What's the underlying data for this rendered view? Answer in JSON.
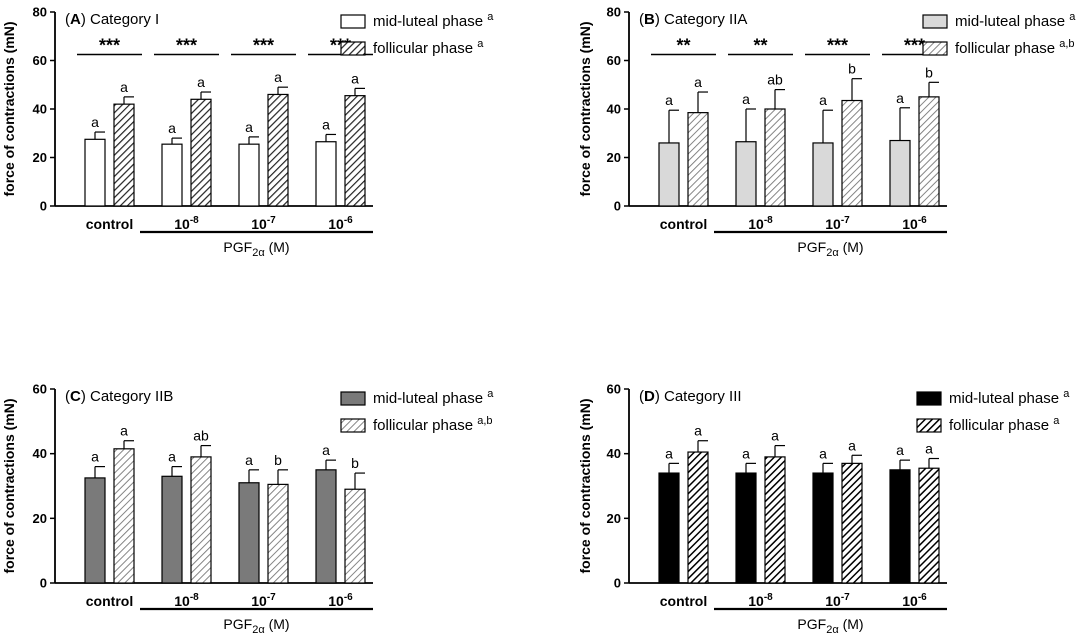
{
  "figure": {
    "x_group_label": "PGF",
    "x_group_label_sub": "2α",
    "x_group_label_unit": " (M)"
  },
  "chart_data": [
    {
      "type": "bar",
      "panel": "A",
      "title": "Category I",
      "ylabel": "force of contractions (mN)",
      "ylim": [
        0,
        80
      ],
      "yticks": [
        0,
        20,
        40,
        60,
        80
      ],
      "categories": [
        "control",
        "10-8",
        "10-7",
        "10-6"
      ],
      "category_base": [
        "control",
        "10",
        "10",
        "10"
      ],
      "category_exp": [
        "",
        "-8",
        "-7",
        "-6"
      ],
      "series": [
        {
          "name": "mid-luteal phase",
          "sup": "a",
          "style": "white",
          "values": [
            27.5,
            25.5,
            25.5,
            26.5
          ],
          "errors": [
            3,
            2.5,
            3,
            3
          ],
          "letters": [
            "a",
            "a",
            "a",
            "a"
          ]
        },
        {
          "name": "follicular phase",
          "sup": "a",
          "style": "hatch-dense",
          "values": [
            42,
            44,
            46,
            45.5
          ],
          "errors": [
            3,
            3,
            3,
            3
          ],
          "letters": [
            "a",
            "a",
            "a",
            "a"
          ]
        }
      ],
      "significance": [
        "***",
        "***",
        "***",
        "***"
      ]
    },
    {
      "type": "bar",
      "panel": "B",
      "title": "Category IIA",
      "ylabel": "force of contractions (mN)",
      "ylim": [
        0,
        80
      ],
      "yticks": [
        0,
        20,
        40,
        60,
        80
      ],
      "categories": [
        "control",
        "10-8",
        "10-7",
        "10-6"
      ],
      "category_base": [
        "control",
        "10",
        "10",
        "10"
      ],
      "category_exp": [
        "",
        "-8",
        "-7",
        "-6"
      ],
      "series": [
        {
          "name": "mid-luteal phase",
          "sup": "a",
          "style": "lightgray",
          "values": [
            26,
            26.5,
            26,
            27
          ],
          "errors": [
            13.5,
            13.5,
            13.5,
            13.5
          ],
          "letters": [
            "a",
            "a",
            "a",
            "a"
          ]
        },
        {
          "name": "follicular phase",
          "sup": "a,b",
          "style": "hatch-sparse",
          "values": [
            38.5,
            40,
            43.5,
            45
          ],
          "errors": [
            8.5,
            8,
            9,
            6
          ],
          "letters": [
            "a",
            "ab",
            "b",
            "b"
          ]
        }
      ],
      "significance": [
        "**",
        "**",
        "***",
        "***"
      ]
    },
    {
      "type": "bar",
      "panel": "C",
      "title": "Category IIB",
      "ylabel": "force of contractions (mN)",
      "ylim": [
        0,
        60
      ],
      "yticks": [
        0,
        20,
        40,
        60
      ],
      "categories": [
        "control",
        "10-8",
        "10-7",
        "10-6"
      ],
      "category_base": [
        "control",
        "10",
        "10",
        "10"
      ],
      "category_exp": [
        "",
        "-8",
        "-7",
        "-6"
      ],
      "series": [
        {
          "name": "mid-luteal phase",
          "sup": "a",
          "style": "darkgray",
          "values": [
            32.5,
            33,
            31,
            35
          ],
          "errors": [
            3.5,
            3,
            4,
            3
          ],
          "letters": [
            "a",
            "a",
            "a",
            "a"
          ]
        },
        {
          "name": "follicular phase",
          "sup": "a,b",
          "style": "hatch-sparse",
          "values": [
            41.5,
            39,
            30.5,
            29
          ],
          "errors": [
            2.5,
            3.5,
            4.5,
            5
          ],
          "letters": [
            "a",
            "ab",
            "b",
            "b"
          ]
        }
      ],
      "significance": []
    },
    {
      "type": "bar",
      "panel": "D",
      "title": "Category III",
      "ylabel": "force of contractions (mN)",
      "ylim": [
        0,
        60
      ],
      "yticks": [
        0,
        20,
        40,
        60
      ],
      "categories": [
        "control",
        "10-8",
        "10-7",
        "10-6"
      ],
      "category_base": [
        "control",
        "10",
        "10",
        "10"
      ],
      "category_exp": [
        "",
        "-8",
        "-7",
        "-6"
      ],
      "series": [
        {
          "name": "mid-luteal phase",
          "sup": "a",
          "style": "black",
          "values": [
            34,
            34,
            34,
            35
          ],
          "errors": [
            3,
            3,
            3,
            3
          ],
          "letters": [
            "a",
            "a",
            "a",
            "a"
          ]
        },
        {
          "name": "follicular phase",
          "sup": "a",
          "style": "hatch-black",
          "values": [
            40.5,
            39,
            37,
            35.5
          ],
          "errors": [
            3.5,
            3.5,
            2.5,
            3
          ],
          "letters": [
            "a",
            "a",
            "a",
            "a"
          ]
        }
      ],
      "significance": []
    }
  ]
}
